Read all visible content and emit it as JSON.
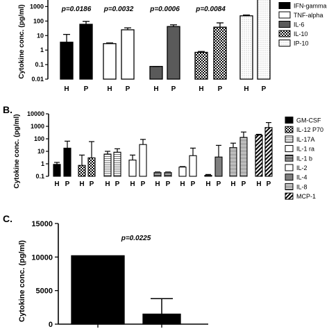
{
  "chart_data": [
    {
      "panel_label": "",
      "type": "bar",
      "y_scale": "log",
      "ylabel": "Cytokine conc. (pg/ml)",
      "yticks": [
        "1000",
        "100",
        "10",
        "1",
        "0.1",
        "0.01"
      ],
      "ylim": [
        0.01,
        10000
      ],
      "series": [
        {
          "name": "IFN-gamma",
          "pattern": "solid-black",
          "pvalue": "p=0.0186",
          "groups": [
            "H",
            "P"
          ],
          "values": [
            3.5,
            60
          ],
          "errors": [
            12,
            95
          ]
        },
        {
          "name": "TNF-alpha",
          "pattern": "white",
          "pvalue": "p=0.0032",
          "groups": [
            "H",
            "P"
          ],
          "values": [
            2.8,
            25
          ],
          "errors": [
            3.1,
            34
          ]
        },
        {
          "name": "IL-6",
          "pattern": "dark-gray",
          "pvalue": "p=0.0006",
          "groups": [
            "H",
            "P"
          ],
          "values": [
            0.075,
            42
          ],
          "errors": [
            0.075,
            55
          ]
        },
        {
          "name": "IL-10",
          "pattern": "checker",
          "pvalue": "p=0.0084",
          "groups": [
            "H",
            "P"
          ],
          "values": [
            0.7,
            38
          ],
          "errors": [
            0.8,
            75
          ]
        },
        {
          "name": "IP-10",
          "pattern": "dotted",
          "pvalue": "",
          "groups": [
            "H",
            "P"
          ],
          "values": [
            230,
            5000
          ],
          "errors": [
            260,
            6500
          ]
        }
      ]
    },
    {
      "panel_label": "B.",
      "type": "bar",
      "y_scale": "log",
      "ylabel": "Cytokine conc. (pg/ml)",
      "yticks": [
        "10000",
        "1000",
        "100",
        "10",
        "1",
        "0.1"
      ],
      "ylim": [
        0.1,
        10000
      ],
      "series": [
        {
          "name": "GM-CSF",
          "pattern": "solid-black",
          "groups": [
            "H",
            "P"
          ],
          "values": [
            0.9,
            18
          ],
          "errors": [
            1.3,
            65
          ]
        },
        {
          "name": "IL-12 P70",
          "pattern": "checker",
          "groups": [
            "H",
            "P"
          ],
          "values": [
            0.75,
            3
          ],
          "errors": [
            5,
            60
          ]
        },
        {
          "name": "IL-17A",
          "pattern": "light-stripes",
          "groups": [
            "H",
            "P"
          ],
          "values": [
            6,
            8.5
          ],
          "errors": [
            10,
            16
          ]
        },
        {
          "name": "IL-1 ra",
          "pattern": "white",
          "groups": [
            "H",
            "P"
          ],
          "values": [
            2,
            35
          ],
          "errors": [
            5,
            90
          ]
        },
        {
          "name": "IL-1 b",
          "pattern": "dense-stripes",
          "groups": [
            "H",
            "P"
          ],
          "values": [
            0.2,
            0.2
          ],
          "errors": [
            0.22,
            0.22
          ]
        },
        {
          "name": "IL-2",
          "pattern": "white",
          "groups": [
            "H",
            "P"
          ],
          "values": [
            0.55,
            4.5
          ],
          "errors": [
            0.6,
            18
          ]
        },
        {
          "name": "IL-4",
          "pattern": "gray",
          "groups": [
            "H",
            "P"
          ],
          "values": [
            0.12,
            3.5
          ],
          "errors": [
            0.14,
            30
          ]
        },
        {
          "name": "IL-8",
          "pattern": "fine-stripes",
          "groups": [
            "H",
            "P"
          ],
          "values": [
            20,
            130
          ],
          "errors": [
            45,
            350
          ]
        },
        {
          "name": "MCP-1",
          "pattern": "diagonal",
          "groups": [
            "H",
            "P"
          ],
          "values": [
            200,
            800
          ],
          "errors": [
            230,
            2000
          ]
        }
      ]
    },
    {
      "panel_label": "C.",
      "type": "bar",
      "y_scale": "linear",
      "ylabel": "Cytokine conc. (pg/ml)",
      "yticks": [
        "15000",
        "10000",
        "5000",
        "0"
      ],
      "ylim": [
        0,
        15000
      ],
      "pvalue": "p=0.0225",
      "categories": [
        "",
        ""
      ],
      "values": [
        10200,
        1500
      ],
      "errors": [
        0,
        3800
      ]
    }
  ]
}
